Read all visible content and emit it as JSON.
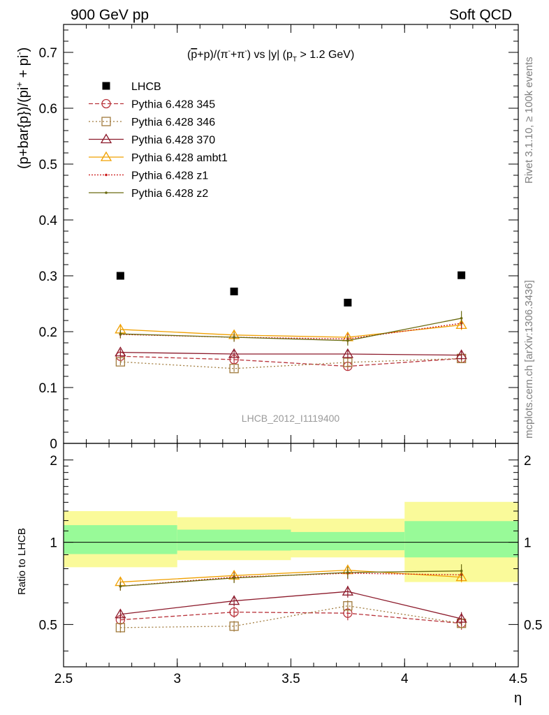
{
  "header": {
    "left": "900 GeV pp",
    "right": "Soft QCD"
  },
  "side_labels": {
    "rivet": "Rivet 3.1.10, ≥ 100k events",
    "mcplots": "mcplots.cern.ch [arXiv:1306.3436]"
  },
  "chart_data": {
    "type": "scatter",
    "title_parts": {
      "a": "(",
      "pbar": "p",
      "b": "+p)/(π",
      "sup1": "-",
      "c": "+π",
      "sup2": "-",
      "d": ") vs |y| (p",
      "sub": "T",
      "e": " > 1.2 GeV)"
    },
    "watermark": "LHCB_2012_I1119400",
    "ylabel_parts": {
      "a": "(p+bar{p})/(pi",
      "sup1": "+",
      "b": " + pi",
      "sup2": "-",
      "c": ")"
    },
    "ratio_ylabel": "Ratio to LHCB",
    "xlabel": "η",
    "xlim": [
      2.5,
      4.5
    ],
    "ylim": [
      0,
      0.75
    ],
    "ratio_ylim": [
      0.35,
      2.3
    ],
    "x_ticks": [
      2.5,
      3,
      3.5,
      4,
      4.5
    ],
    "x_tick_labels": [
      "2.5",
      "3",
      "3.5",
      "4",
      "4.5"
    ],
    "y_ticks": [
      0,
      0.1,
      0.2,
      0.3,
      0.4,
      0.5,
      0.6,
      0.7
    ],
    "y_tick_labels": [
      "0",
      "0.1",
      "0.2",
      "0.3",
      "0.4",
      "0.5",
      "0.6",
      "0.7"
    ],
    "ratio_ticks": [
      0.5,
      1,
      2
    ],
    "ratio_tick_labels": [
      "0.5",
      "1",
      "2"
    ],
    "bins": [
      [
        2.5,
        3.0
      ],
      [
        3.0,
        3.5
      ],
      [
        3.5,
        4.0
      ],
      [
        4.0,
        4.5
      ]
    ],
    "x": [
      2.75,
      3.25,
      3.75,
      4.25
    ],
    "data": {
      "name": "LHCB",
      "values": [
        0.3,
        0.272,
        0.252,
        0.301
      ],
      "ratio_band_inner": [
        [
          0.905,
          1.155
        ],
        [
          0.932,
          1.112
        ],
        [
          0.935,
          1.09
        ],
        [
          0.88,
          1.195
        ]
      ],
      "ratio_band_outer": [
        [
          0.81,
          1.3
        ],
        [
          0.86,
          1.235
        ],
        [
          0.88,
          1.22
        ],
        [
          0.715,
          1.405
        ]
      ]
    },
    "series": [
      {
        "name": "Pythia 6.428 345",
        "color": "#b8323a",
        "dash": "6,3",
        "marker": "circle",
        "values": [
          0.156,
          0.15,
          0.138,
          0.152
        ],
        "errors": [
          0.006,
          0.007,
          0.008,
          0.008
        ],
        "ratio": [
          0.52,
          0.555,
          0.55,
          0.505
        ]
      },
      {
        "name": "Pythia 6.428 346",
        "color": "#a07a3c",
        "dash": "2,3",
        "marker": "square",
        "values": [
          0.146,
          0.134,
          0.145,
          0.152
        ],
        "errors": [
          0.006,
          0.006,
          0.007,
          0.007
        ],
        "ratio": [
          0.487,
          0.493,
          0.585,
          0.505
        ]
      },
      {
        "name": "Pythia 6.428 370",
        "color": "#8c1a2b",
        "dash": "",
        "marker": "triangle",
        "values": [
          0.163,
          0.16,
          0.16,
          0.158
        ],
        "errors": [
          0.006,
          0.007,
          0.008,
          0.009
        ],
        "ratio": [
          0.545,
          0.61,
          0.66,
          0.525
        ]
      },
      {
        "name": "Pythia 6.428 ambt1",
        "color": "#f0a000",
        "dash": "",
        "marker": "triangle",
        "values": [
          0.204,
          0.194,
          0.19,
          0.212
        ],
        "errors": [
          0.007,
          0.008,
          0.009,
          0.009
        ],
        "ratio": [
          0.715,
          0.755,
          0.79,
          0.745
        ]
      },
      {
        "name": "Pythia 6.428 z1",
        "color": "#cc1a1a",
        "dash": "2,2",
        "marker": "dot",
        "values": [
          0.195,
          0.19,
          0.187,
          0.215
        ],
        "errors": [
          0.007,
          0.008,
          0.009,
          0.01
        ],
        "ratio": [
          0.69,
          0.745,
          0.77,
          0.76
        ]
      },
      {
        "name": "Pythia 6.428 z2",
        "color": "#6a6a10",
        "dash": "",
        "marker": "dot",
        "values": [
          0.196,
          0.19,
          0.184,
          0.224
        ],
        "errors": [
          0.007,
          0.008,
          0.009,
          0.013
        ],
        "ratio": [
          0.69,
          0.74,
          0.775,
          0.785
        ]
      }
    ],
    "colors": {
      "band_inner": "#98fa98",
      "band_outer": "#fafa9a",
      "data_marker": "#000000"
    }
  }
}
